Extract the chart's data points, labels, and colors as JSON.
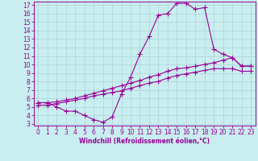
{
  "xlabel": "Windchill (Refroidissement éolien,°C)",
  "bg_color": "#c8eef0",
  "grid_color": "#b0d0d8",
  "line_color": "#990099",
  "spine_color": "#990099",
  "xlim": [
    -0.5,
    23.5
  ],
  "ylim": [
    2.8,
    17.4
  ],
  "x_ticks": [
    0,
    1,
    2,
    3,
    4,
    5,
    6,
    7,
    8,
    9,
    10,
    11,
    12,
    13,
    14,
    15,
    16,
    17,
    18,
    19,
    20,
    21,
    22,
    23
  ],
  "y_ticks": [
    3,
    4,
    5,
    6,
    7,
    8,
    9,
    10,
    11,
    12,
    13,
    14,
    15,
    16,
    17
  ],
  "line1_x": [
    0,
    1,
    2,
    3,
    4,
    5,
    6,
    7,
    8,
    9,
    10,
    11,
    12,
    13,
    14,
    15,
    16,
    17,
    18,
    19,
    20,
    21,
    22,
    23
  ],
  "line1_y": [
    5.5,
    5.5,
    5.0,
    4.5,
    4.5,
    4.0,
    3.5,
    3.2,
    3.8,
    6.5,
    8.5,
    11.2,
    13.3,
    15.8,
    16.0,
    17.2,
    17.2,
    16.5,
    16.7,
    11.8,
    11.2,
    10.8,
    9.8,
    9.8
  ],
  "line2_x": [
    0,
    1,
    2,
    3,
    4,
    5,
    6,
    7,
    8,
    9,
    10,
    11,
    12,
    13,
    14,
    15,
    16,
    17,
    18,
    19,
    20,
    21,
    22,
    23
  ],
  "line2_y": [
    5.5,
    5.5,
    5.6,
    5.8,
    6.0,
    6.3,
    6.6,
    6.9,
    7.2,
    7.5,
    7.8,
    8.1,
    8.5,
    8.8,
    9.2,
    9.5,
    9.6,
    9.8,
    10.0,
    10.2,
    10.5,
    10.8,
    9.8,
    9.8
  ],
  "line3_x": [
    0,
    1,
    2,
    3,
    4,
    5,
    6,
    7,
    8,
    9,
    10,
    11,
    12,
    13,
    14,
    15,
    16,
    17,
    18,
    19,
    20,
    21,
    22,
    23
  ],
  "line3_y": [
    5.2,
    5.2,
    5.4,
    5.6,
    5.8,
    6.0,
    6.3,
    6.5,
    6.7,
    6.9,
    7.2,
    7.5,
    7.8,
    8.0,
    8.4,
    8.7,
    8.9,
    9.1,
    9.3,
    9.5,
    9.5,
    9.5,
    9.2,
    9.2
  ],
  "xlabel_fontsize": 5.5,
  "tick_fontsize": 5.5,
  "marker_size": 2.0,
  "line_width": 0.8
}
